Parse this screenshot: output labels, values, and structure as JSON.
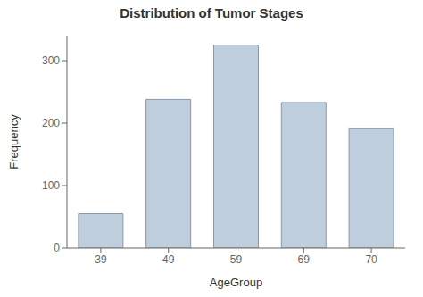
{
  "chart_data": {
    "type": "bar",
    "title": "Distribution of Tumor Stages",
    "xlabel": "AgeGroup",
    "ylabel": "Frequency",
    "categories": [
      "39",
      "49",
      "59",
      "69",
      "70"
    ],
    "values": [
      55,
      238,
      325,
      233,
      191
    ],
    "color": "#bfcedc",
    "ylim": [
      0,
      340
    ],
    "yticks": [
      0,
      100,
      200,
      300
    ],
    "grid": false
  }
}
